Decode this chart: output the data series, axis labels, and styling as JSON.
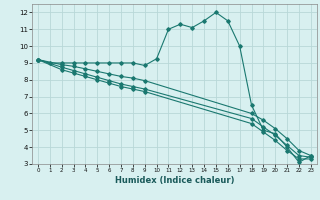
{
  "bg_color": "#d8f0f0",
  "grid_color": "#b8d8d8",
  "line_color": "#1a7870",
  "xlabel": "Humidex (Indice chaleur)",
  "xlim": [
    -0.5,
    23.5
  ],
  "ylim": [
    3,
    12.5
  ],
  "yticks": [
    3,
    4,
    5,
    6,
    7,
    8,
    9,
    10,
    11,
    12
  ],
  "xticks": [
    0,
    1,
    2,
    3,
    4,
    5,
    6,
    7,
    8,
    9,
    10,
    11,
    12,
    13,
    14,
    15,
    16,
    17,
    18,
    19,
    20,
    21,
    22,
    23
  ],
  "main_line_x": [
    0,
    1,
    2,
    3,
    4,
    5,
    6,
    7,
    8,
    9,
    10,
    11,
    12,
    13,
    14,
    15,
    16,
    17,
    18,
    19,
    20,
    21,
    22,
    23
  ],
  "main_line_y": [
    9.2,
    9.0,
    9.0,
    9.0,
    9.0,
    9.0,
    9.0,
    9.0,
    9.0,
    8.85,
    9.25,
    11.0,
    11.3,
    11.1,
    11.5,
    12.0,
    11.5,
    10.0,
    6.5,
    5.0,
    4.8,
    4.0,
    3.1,
    3.5
  ],
  "line2_x": [
    0,
    2,
    3,
    4,
    5,
    6,
    7,
    8,
    9,
    18,
    19,
    20,
    21,
    22,
    23
  ],
  "line2_y": [
    9.2,
    8.9,
    8.8,
    8.65,
    8.5,
    8.35,
    8.2,
    8.1,
    7.95,
    6.0,
    5.6,
    5.1,
    4.5,
    3.8,
    3.5
  ],
  "line3_x": [
    0,
    2,
    3,
    4,
    5,
    6,
    7,
    8,
    9,
    18,
    19,
    20,
    21,
    22,
    23
  ],
  "line3_y": [
    9.2,
    8.75,
    8.55,
    8.35,
    8.15,
    7.95,
    7.75,
    7.6,
    7.45,
    5.7,
    5.2,
    4.7,
    4.1,
    3.5,
    3.4
  ],
  "line4_x": [
    0,
    2,
    3,
    4,
    5,
    6,
    7,
    8,
    9,
    18,
    19,
    20,
    21,
    22,
    23
  ],
  "line4_y": [
    9.2,
    8.6,
    8.4,
    8.2,
    8.0,
    7.8,
    7.6,
    7.45,
    7.3,
    5.4,
    4.9,
    4.4,
    3.8,
    3.3,
    3.3
  ]
}
